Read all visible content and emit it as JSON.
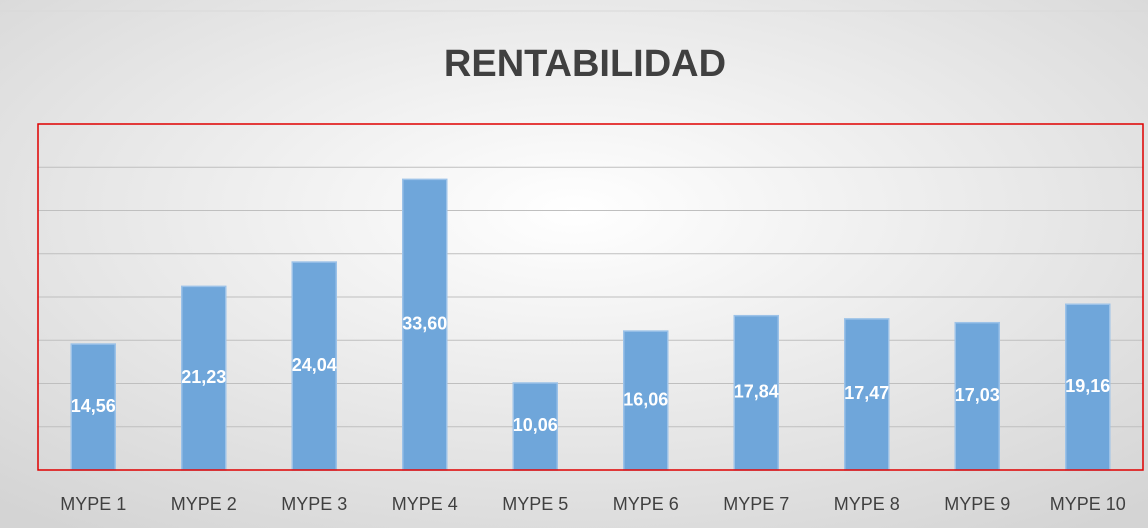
{
  "chart_data": {
    "type": "bar",
    "title": "RENTABILIDAD",
    "categories": [
      "MYPE 1",
      "MYPE 2",
      "MYPE 3",
      "MYPE 4",
      "MYPE 5",
      "MYPE 6",
      "MYPE 7",
      "MYPE 8",
      "MYPE 9",
      "MYPE 10"
    ],
    "values": [
      14.56,
      21.23,
      24.04,
      33.6,
      10.06,
      16.06,
      17.84,
      17.47,
      17.03,
      19.16
    ],
    "value_labels": [
      "14,56",
      "21,23",
      "24,04",
      "33,60",
      "10,06",
      "16,06",
      "17,84",
      "17,47",
      "17,03",
      "19,16"
    ],
    "color": "#6fa6da",
    "ylim": [
      0,
      40
    ],
    "yticks": [
      0,
      5,
      10,
      15,
      20,
      25,
      30,
      35,
      40
    ],
    "grid": true
  }
}
